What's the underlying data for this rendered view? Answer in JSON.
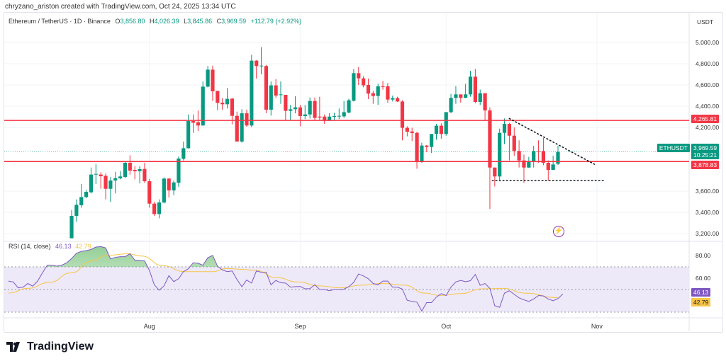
{
  "credit": "chryzano_ariston created with TradingView.com, Oct 24, 2025 13:34 UTC",
  "symbol_title": "Ethereum / TetherUS · 1D · Binance",
  "ohlc": {
    "o_label": "O",
    "o": "3,856.80",
    "h_label": "H",
    "h": "4,026.39",
    "l_label": "L",
    "l": "3,845.86",
    "c_label": "C",
    "c": "3,969.59",
    "change": "+112.79 (+2.92%)"
  },
  "currency": "USDT",
  "price_ticks": [
    "5,000.00",
    "4,800.00",
    "4,600.00",
    "4,400.00",
    "4,200.00",
    "3,600.00",
    "3,400.00",
    "3,200.00"
  ],
  "month_labels": [
    "Aug",
    "Sep",
    "Oct",
    "Nov"
  ],
  "levels": {
    "resistance": "4,265.81",
    "support": "3,878.83"
  },
  "last_price": {
    "symbol": "ETHUSDT",
    "price": "3,969.59",
    "countdown": "10:25:21"
  },
  "rsi": {
    "title": "RSI (14, close)",
    "value": "46.13",
    "ma_value": "42.79",
    "ticks": [
      "80.00",
      "60.00"
    ]
  },
  "footer": {
    "brand": "TradingView"
  },
  "colors": {
    "up": "#089981",
    "down": "#f23645",
    "level": "#f23645",
    "rsi": "#7e57c2",
    "rsi_ma": "#f7c548",
    "band": "#ede9f8"
  },
  "chart_data": [
    {
      "type": "candlestick",
      "title": "Ethereum / TetherUS · 1D · Binance",
      "ylabel": "USDT",
      "ylim": [
        3100,
        5050
      ],
      "x_months": [
        {
          "label": "Aug",
          "index": 16
        },
        {
          "label": "Sep",
          "index": 47
        },
        {
          "label": "Oct",
          "index": 77
        },
        {
          "label": "Nov",
          "index": 108
        }
      ],
      "ohlc": [
        [
          3156,
          3422,
          3156,
          3367
        ],
        [
          3367,
          3522,
          3311,
          3471
        ],
        [
          3467,
          3667,
          3444,
          3544
        ],
        [
          3544,
          3611,
          3533,
          3593
        ],
        [
          3589,
          3822,
          3578,
          3756
        ],
        [
          3756,
          3856,
          3667,
          3762
        ],
        [
          3756,
          3778,
          3622,
          3740
        ],
        [
          3744,
          3767,
          3522,
          3622
        ],
        [
          3622,
          3733,
          3500,
          3700
        ],
        [
          3700,
          3782,
          3578,
          3722
        ],
        [
          3720,
          3789,
          3711,
          3738
        ],
        [
          3733,
          3878,
          3722,
          3867
        ],
        [
          3867,
          3938,
          3756,
          3793
        ],
        [
          3800,
          3833,
          3711,
          3787
        ],
        [
          3787,
          3833,
          3673,
          3807
        ],
        [
          3809,
          3867,
          3678,
          3693
        ],
        [
          3693,
          3716,
          3444,
          3482
        ],
        [
          3482,
          3500,
          3367,
          3384
        ],
        [
          3384,
          3522,
          3344,
          3493
        ],
        [
          3493,
          3729,
          3484,
          3718
        ],
        [
          3718,
          3722,
          3540,
          3607
        ],
        [
          3607,
          3700,
          3562,
          3682
        ],
        [
          3678,
          3927,
          3640,
          3907
        ],
        [
          3904,
          4067,
          3889,
          4004
        ],
        [
          4004,
          4322,
          4000,
          4260
        ],
        [
          4260,
          4322,
          4149,
          4244
        ],
        [
          4249,
          4360,
          4167,
          4218
        ],
        [
          4218,
          4633,
          4218,
          4584
        ],
        [
          4584,
          4778,
          4578,
          4744
        ],
        [
          4744,
          4782,
          4449,
          4540
        ],
        [
          4544,
          4544,
          4362,
          4431
        ],
        [
          4433,
          4478,
          4367,
          4418
        ],
        [
          4418,
          4571,
          4378,
          4469
        ],
        [
          4471,
          4478,
          4229,
          4309
        ],
        [
          4309,
          4349,
          4067,
          4067
        ],
        [
          4067,
          4371,
          4056,
          4333
        ],
        [
          4333,
          4367,
          4207,
          4218
        ],
        [
          4218,
          4884,
          4204,
          4829
        ],
        [
          4829,
          4833,
          4660,
          4778
        ],
        [
          4778,
          4956,
          4700,
          4782
        ],
        [
          4778,
          4789,
          4333,
          4367
        ],
        [
          4367,
          4633,
          4311,
          4596
        ],
        [
          4596,
          4656,
          4478,
          4500
        ],
        [
          4509,
          4633,
          4422,
          4511
        ],
        [
          4507,
          4507,
          4267,
          4356
        ],
        [
          4356,
          4411,
          4267,
          4371
        ],
        [
          4371,
          4493,
          4333,
          4389
        ],
        [
          4389,
          4411,
          4211,
          4307
        ],
        [
          4307,
          4411,
          4278,
          4322
        ],
        [
          4322,
          4482,
          4284,
          4449
        ],
        [
          4449,
          4482,
          4267,
          4289
        ],
        [
          4302,
          4489,
          4267,
          4293
        ],
        [
          4302,
          4322,
          4233,
          4262
        ],
        [
          4267,
          4333,
          4262,
          4302
        ],
        [
          4302,
          4338,
          4267,
          4307
        ],
        [
          4307,
          4378,
          4278,
          4309
        ],
        [
          4304,
          4449,
          4289,
          4344
        ],
        [
          4340,
          4471,
          4333,
          4456
        ],
        [
          4451,
          4749,
          4444,
          4711
        ],
        [
          4711,
          4767,
          4600,
          4662
        ],
        [
          4662,
          4682,
          4578,
          4596
        ],
        [
          4600,
          4660,
          4467,
          4518
        ],
        [
          4522,
          4544,
          4422,
          4496
        ],
        [
          4496,
          4611,
          4411,
          4587
        ],
        [
          4587,
          4638,
          4556,
          4582
        ],
        [
          4587,
          4618,
          4433,
          4462
        ],
        [
          4462,
          4500,
          4444,
          4476
        ],
        [
          4476,
          4489,
          4440,
          4444
        ],
        [
          4444,
          4456,
          4078,
          4196
        ],
        [
          4196,
          4211,
          4116,
          4160
        ],
        [
          4162,
          4196,
          4071,
          4147
        ],
        [
          4149,
          4160,
          3811,
          3873
        ],
        [
          3873,
          4056,
          3867,
          4029
        ],
        [
          4029,
          4033,
          3967,
          4016
        ],
        [
          4016,
          4138,
          3960,
          4138
        ],
        [
          4138,
          4233,
          4084,
          4216
        ],
        [
          4216,
          4238,
          4093,
          4138
        ],
        [
          4138,
          4344,
          4122,
          4344
        ],
        [
          4344,
          4516,
          4333,
          4478
        ],
        [
          4478,
          4589,
          4422,
          4511
        ],
        [
          4511,
          4511,
          4433,
          4478
        ],
        [
          4478,
          4611,
          4478,
          4511
        ],
        [
          4511,
          4733,
          4489,
          4678
        ],
        [
          4678,
          4751,
          4427,
          4440
        ],
        [
          4440,
          4556,
          4411,
          4522
        ],
        [
          4522,
          4522,
          4262,
          4360
        ],
        [
          4360,
          4389,
          3433,
          3822
        ],
        [
          3822,
          3822,
          3644,
          3738
        ],
        [
          3738,
          4189,
          3700,
          4149
        ],
        [
          4149,
          4284,
          4044,
          4233
        ],
        [
          4233,
          4244,
          3889,
          4122
        ],
        [
          4122,
          4200,
          3933,
          3978
        ],
        [
          3978,
          4078,
          3822,
          3889
        ],
        [
          3889,
          3944,
          3678,
          3822
        ],
        [
          3822,
          3922,
          3818,
          3884
        ],
        [
          3884,
          4027,
          3822,
          3978
        ],
        [
          3978,
          4078,
          3867,
          3973
        ],
        [
          3978,
          4100,
          3844,
          3867
        ],
        [
          3867,
          3889,
          3700,
          3800
        ],
        [
          3800,
          3933,
          3800,
          3851
        ],
        [
          3856.8,
          4026.39,
          3845.86,
          3969.59
        ]
      ],
      "horizontal_levels": [
        4265.81,
        3878.83
      ],
      "last_close": 3969.59,
      "trendlines": [
        {
          "style": "dotted",
          "from": [
            90,
            4284
          ],
          "to": [
            107.5,
            3853
          ]
        },
        {
          "style": "dotted",
          "from": [
            86.5,
            3700
          ],
          "to": [
            109.7,
            3700
          ]
        }
      ]
    },
    {
      "type": "line",
      "title": "RSI (14, close)",
      "ylim": [
        22,
        92
      ],
      "bands": [
        30,
        50,
        70
      ],
      "candle_offset": 13,
      "series": [
        {
          "name": "RSI",
          "values": [
            57.4,
            56.7,
            51.5,
            52,
            55.3,
            53,
            57.4,
            64.7,
            71.5,
            71.5,
            70.6,
            71.5,
            73.6,
            77.4,
            82,
            83.7,
            84.3,
            85.4,
            87.5,
            87.9,
            86.8,
            77,
            78.4,
            79,
            79,
            81.6,
            75.9,
            75.7,
            75.3,
            66.8,
            54.2,
            49.4,
            53.2,
            62.2,
            57,
            59.5,
            65.8,
            68.3,
            73.6,
            73.2,
            71.5,
            78,
            80.1,
            70.6,
            67.3,
            65.8,
            66.4,
            58.8,
            52.5,
            58.4,
            55.7,
            66.4,
            65.2,
            65.2,
            54.2,
            58,
            55.9,
            55.7,
            52.1,
            52.5,
            52.7,
            50.6,
            50.8,
            54.2,
            50,
            50,
            48.9,
            50,
            50,
            50.4,
            52.5,
            56.3,
            63.7,
            62,
            59.5,
            55.3,
            54.2,
            57.4,
            57.4,
            52.1,
            52.1,
            50.4,
            40.5,
            39.5,
            38.8,
            31,
            38.4,
            38.4,
            43.3,
            46.4,
            44.7,
            52.1,
            56.7,
            58,
            56.9,
            57.8,
            63.3,
            53.7,
            55.3,
            51,
            35.7,
            34.2,
            46.8,
            48.9,
            45.8,
            42.6,
            40.9,
            39.5,
            41.6,
            44.7,
            44.3,
            41.6,
            40.1,
            42,
            46.13
          ]
        },
        {
          "name": "RSI-based MA",
          "points": [
            [
              0,
              46.8
            ],
            [
              4,
              51
            ],
            [
              8.5,
              56.3
            ],
            [
              12.9,
              64.7
            ],
            [
              17.2,
              75.3
            ],
            [
              20.1,
              79.9
            ],
            [
              24.5,
              81.6
            ],
            [
              27.4,
              79.5
            ],
            [
              31.8,
              71
            ],
            [
              36.2,
              65.8
            ],
            [
              42,
              65.8
            ],
            [
              44.9,
              68.5
            ],
            [
              47.8,
              67.9
            ],
            [
              50.8,
              66.8
            ],
            [
              55.1,
              60.5
            ],
            [
              59.5,
              56.7
            ],
            [
              63.9,
              53.2
            ],
            [
              68.3,
              51.5
            ],
            [
              72.6,
              53.8
            ],
            [
              77,
              55.3
            ],
            [
              81.4,
              53.8
            ],
            [
              85.7,
              46.8
            ],
            [
              88.7,
              44.7
            ],
            [
              93,
              46.4
            ],
            [
              97.4,
              50.6
            ],
            [
              101.8,
              51
            ],
            [
              106.2,
              46.8
            ],
            [
              113,
              42.79
            ]
          ]
        }
      ]
    }
  ]
}
